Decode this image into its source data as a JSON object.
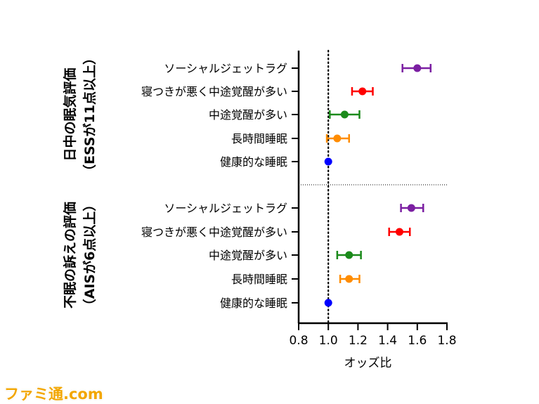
{
  "chart_data": {
    "type": "scatter",
    "subtype": "forest-plot",
    "xlabel": "オッズ比",
    "xlim": [
      0.8,
      1.8
    ],
    "xticks": [
      0.8,
      1.0,
      1.2,
      1.4,
      1.6,
      1.8
    ],
    "xtick_labels": [
      "0.8",
      "1.0",
      "1.2",
      "1.4",
      "1.6",
      "1.8"
    ],
    "reference_line": 1.0,
    "groups": [
      {
        "title_line1": "日中の眠気評価",
        "title_line2": "（ESSが11点以上）",
        "items": [
          {
            "label": "ソーシャルジェットラグ",
            "value": 1.6,
            "low": 1.5,
            "high": 1.69,
            "color": "#7b1fa2"
          },
          {
            "label": "寝つきが悪く中途覚醒が多い",
            "value": 1.23,
            "low": 1.16,
            "high": 1.3,
            "color": "#ff0000"
          },
          {
            "label": "中途覚醒が多い",
            "value": 1.11,
            "low": 1.01,
            "high": 1.21,
            "color": "#1b8a1b"
          },
          {
            "label": "長時間睡眠",
            "value": 1.06,
            "low": 0.99,
            "high": 1.14,
            "color": "#ff8c00"
          },
          {
            "label": "健康的な睡眠",
            "value": 1.0,
            "low": 1.0,
            "high": 1.0,
            "color": "#0000ff"
          }
        ]
      },
      {
        "title_line1": "不眠の訴えの評価",
        "title_line2": "（AISが6点以上）",
        "items": [
          {
            "label": "ソーシャルジェットラグ",
            "value": 1.56,
            "low": 1.49,
            "high": 1.64,
            "color": "#7b1fa2"
          },
          {
            "label": "寝つきが悪く中途覚醒が多い",
            "value": 1.48,
            "low": 1.41,
            "high": 1.55,
            "color": "#ff0000"
          },
          {
            "label": "中途覚醒が多い",
            "value": 1.14,
            "low": 1.06,
            "high": 1.22,
            "color": "#1b8a1b"
          },
          {
            "label": "長時間睡眠",
            "value": 1.14,
            "low": 1.08,
            "high": 1.21,
            "color": "#ff8c00"
          },
          {
            "label": "健康的な睡眠",
            "value": 1.0,
            "low": 1.0,
            "high": 1.0,
            "color": "#0000ff"
          }
        ]
      }
    ],
    "grid": false
  },
  "watermark": "ファミ通.com"
}
